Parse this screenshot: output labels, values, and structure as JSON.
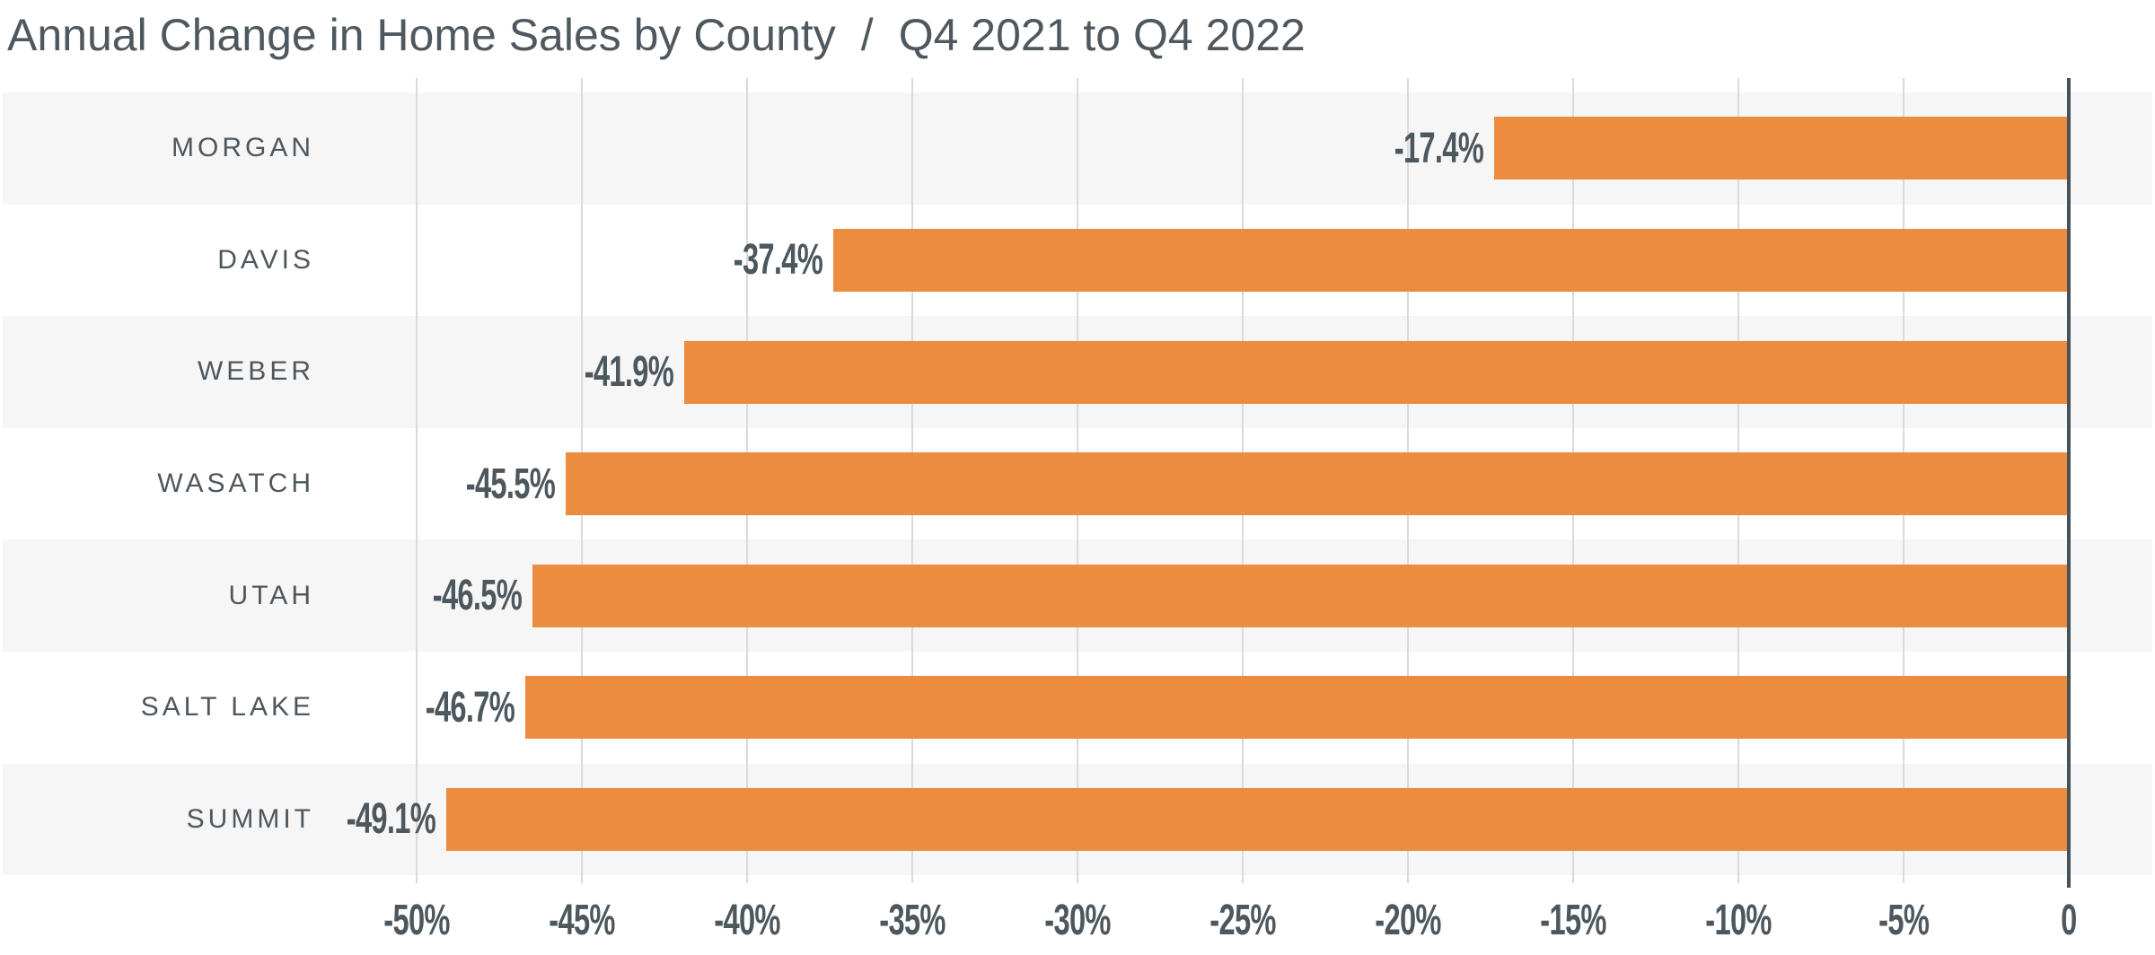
{
  "title": {
    "main": "Annual Change in Home Sales by County",
    "separator": "/",
    "period": "Q4 2021 to Q4 2022"
  },
  "chart_data": {
    "type": "bar",
    "orientation": "horizontal",
    "title": "Annual Change in Home Sales by County / Q4 2021 to Q4 2022",
    "categories": [
      "MORGAN",
      "DAVIS",
      "WEBER",
      "WASATCH",
      "UTAH",
      "SALT LAKE",
      "SUMMIT"
    ],
    "values": [
      -17.4,
      -37.4,
      -41.9,
      -45.5,
      -46.5,
      -46.7,
      -49.1
    ],
    "value_labels": [
      "-17.4%",
      "-37.4%",
      "-41.9%",
      "-45.5%",
      "-46.5%",
      "-46.7%",
      "-49.1%"
    ],
    "xlabel": "",
    "ylabel": "",
    "xlim": [
      -54.5,
      0
    ],
    "x_ticks": [
      -50,
      -45,
      -40,
      -35,
      -30,
      -25,
      -20,
      -15,
      -10,
      -5,
      0
    ],
    "x_tick_labels": [
      "-50%",
      "-45%",
      "-40%",
      "-35%",
      "-30%",
      "-25%",
      "-20%",
      "-15%",
      "-10%",
      "-5%",
      "0"
    ],
    "grid": true,
    "legend": false,
    "row_striping": "alternating",
    "bar_color": "#EC8C3E"
  },
  "colors": {
    "bar": "#EC8C3E",
    "title_text": "#4E585E",
    "label_text": "#4D575E",
    "row_stripe": "#F6F6F7",
    "row_alt": "#FFFFFF",
    "gridline": "#D8DADB",
    "zero_line": "#47525A",
    "background": "#FFFFFF"
  }
}
